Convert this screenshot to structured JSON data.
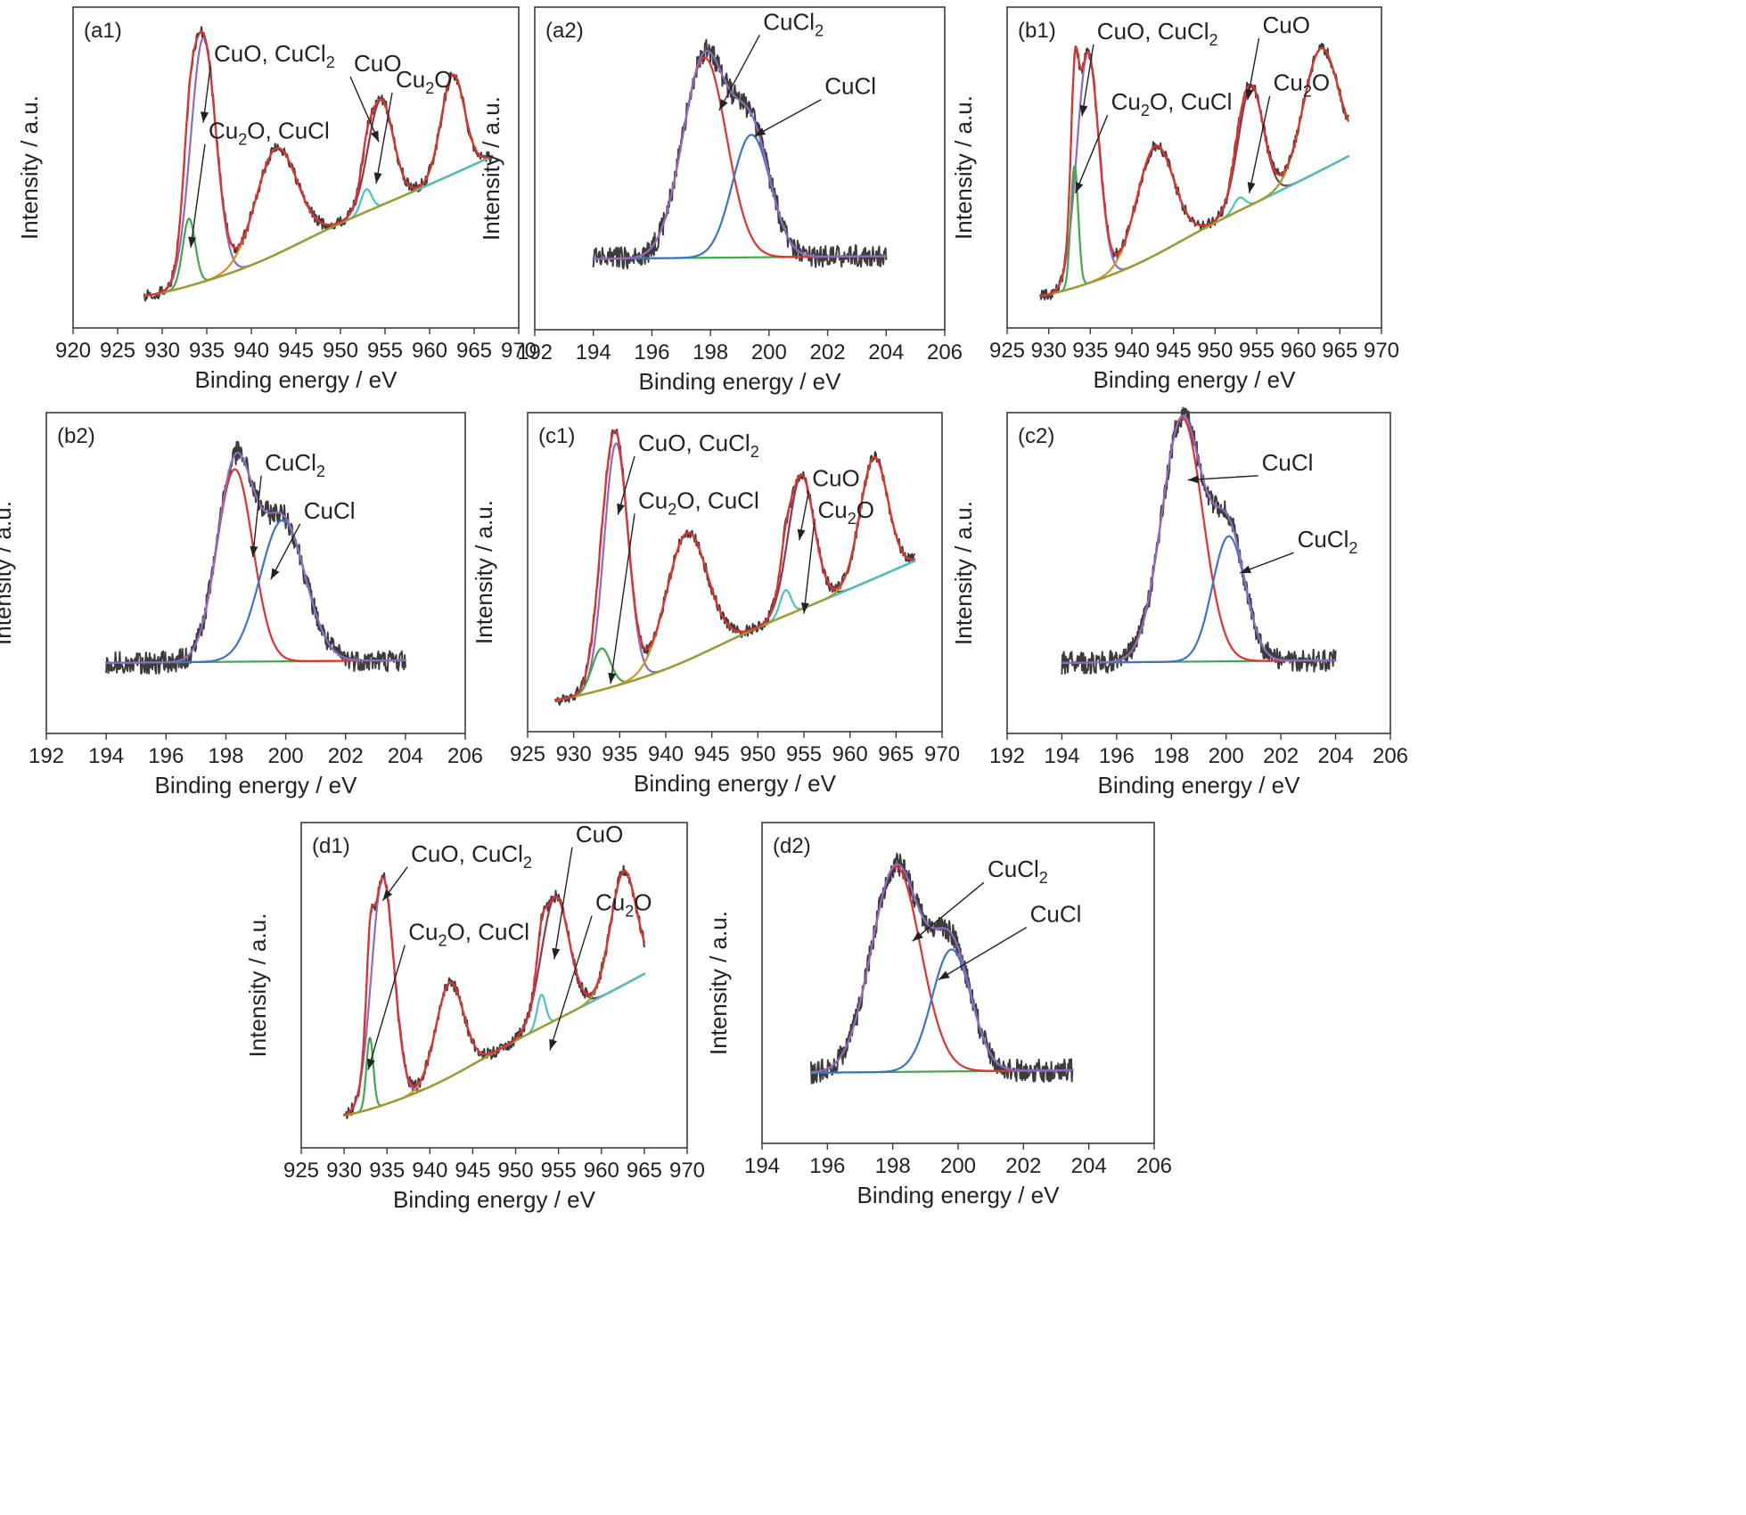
{
  "colors": {
    "raw": "#3c3c3c",
    "envelope_purple": "#8e6bbf",
    "red": "#e0312f",
    "green": "#3faa4a",
    "blue": "#3d74c4",
    "orange": "#d4912b",
    "cyan": "#49c2c2",
    "olive": "#a39a2a",
    "maroon": "#8a3a4a"
  },
  "chart_data": [
    {
      "id": "a1",
      "type": "line",
      "panel_label": "(a1)",
      "spectrum": "cu",
      "xlabel": "Binding energy / eV",
      "ylabel": "Intensity / a.u.",
      "xlim": [
        920,
        970
      ],
      "xrange": [
        928,
        967
      ],
      "xticks": [
        920,
        925,
        930,
        935,
        940,
        945,
        950,
        955,
        960,
        965,
        970
      ],
      "peaks": [
        {
          "name": "CuO, CuCl2",
          "color": "purple",
          "center": 934.6,
          "height": 0.76,
          "width": 1.4
        },
        {
          "name": "Cu2O, CuCl",
          "color": "green",
          "center": 933.0,
          "height": 0.21,
          "width": 0.7
        },
        {
          "name": "satellite",
          "color": "orange",
          "center": 942.8,
          "height": 0.33,
          "width": 2.3
        },
        {
          "name": "CuO",
          "color": "maroon",
          "center": 954.5,
          "height": 0.33,
          "width": 1.4
        },
        {
          "name": "Cu2O",
          "color": "cyan",
          "center": 952.9,
          "height": 0.07,
          "width": 0.6
        },
        {
          "name": "satellite",
          "color": "olive",
          "center": 962.6,
          "height": 0.31,
          "width": 1.3
        }
      ],
      "annotations": [
        {
          "main": "CuO, CuCl",
          "sub": "2",
          "text_x": 935.8,
          "text_y": 0.83,
          "tip_x": 934.6,
          "tip_y": 0.64
        },
        {
          "main": "Cu",
          "sub": "2",
          "rest": "O, CuCl",
          "text_x": 935.2,
          "text_y": 0.59,
          "tip_x": 933.2,
          "tip_y": 0.25
        },
        {
          "main": "CuO",
          "text_x": 951.5,
          "text_y": 0.8,
          "tip_x": 954.3,
          "tip_y": 0.58
        },
        {
          "main": "Cu",
          "sub": "2",
          "rest": "O",
          "text_x": 956.2,
          "text_y": 0.75,
          "tip_x": 954.0,
          "tip_y": 0.45
        }
      ]
    },
    {
      "id": "a2",
      "type": "line",
      "panel_label": "(a2)",
      "spectrum": "cl",
      "xlabel": "Binding energy / eV",
      "ylabel": "Intensity / a.u.",
      "xlim": [
        192,
        206
      ],
      "xrange": [
        194,
        204
      ],
      "xticks": [
        192,
        194,
        196,
        198,
        200,
        202,
        204,
        206
      ],
      "peaks": [
        {
          "name": "CuCl2",
          "color": "red",
          "center": 197.8,
          "height": 0.62,
          "width": 0.75
        },
        {
          "name": "CuCl",
          "color": "blue",
          "center": 199.4,
          "height": 0.38,
          "width": 0.65
        }
      ],
      "annotations": [
        {
          "main": "CuCl",
          "sub": "2",
          "text_x": 199.8,
          "text_y": 0.93,
          "tip_x": 198.3,
          "tip_y": 0.68
        },
        {
          "main": "CuCl",
          "text_x": 201.9,
          "text_y": 0.73,
          "tip_x": 199.5,
          "tip_y": 0.6
        }
      ]
    },
    {
      "id": "b1",
      "type": "line",
      "panel_label": "(b1)",
      "spectrum": "cu",
      "xlabel": "Binding energy / eV",
      "ylabel": "Intensity / a.u.",
      "xlim": [
        925,
        970
      ],
      "xrange": [
        929,
        966
      ],
      "xticks": [
        925,
        930,
        935,
        940,
        945,
        950,
        955,
        960,
        965,
        970
      ],
      "peaks": [
        {
          "name": "CuO, CuCl2",
          "color": "purple",
          "center": 934.7,
          "height": 0.72,
          "width": 1.3
        },
        {
          "name": "Cu2O, CuCl",
          "color": "green",
          "center": 933.1,
          "height": 0.38,
          "width": 0.45
        },
        {
          "name": "satellite",
          "color": "orange",
          "center": 942.8,
          "height": 0.34,
          "width": 2.2
        },
        {
          "name": "CuO",
          "color": "maroon",
          "center": 954.3,
          "height": 0.37,
          "width": 1.5
        },
        {
          "name": "Cu2O",
          "color": "cyan",
          "center": 952.9,
          "height": 0.04,
          "width": 0.7
        },
        {
          "name": "satellite",
          "color": "olive",
          "center": 962.7,
          "height": 0.38,
          "width": 2.1
        }
      ],
      "annotations": [
        {
          "main": "CuO, CuCl",
          "sub": "2",
          "text_x": 935.8,
          "text_y": 0.9,
          "tip_x": 934.0,
          "tip_y": 0.66
        },
        {
          "main": "Cu",
          "sub": "2",
          "rest": "O, CuCl",
          "text_x": 937.5,
          "text_y": 0.68,
          "tip_x": 933.2,
          "tip_y": 0.42
        },
        {
          "main": "CuO",
          "text_x": 955.7,
          "text_y": 0.92,
          "tip_x": 953.9,
          "tip_y": 0.71
        },
        {
          "main": "Cu",
          "sub": "2",
          "rest": "O",
          "text_x": 957.0,
          "text_y": 0.74,
          "tip_x": 954.1,
          "tip_y": 0.42
        }
      ]
    },
    {
      "id": "b2",
      "type": "line",
      "panel_label": "(b2)",
      "spectrum": "cl",
      "xlabel": "Binding energy / eV",
      "ylabel": "Intensity / a.u.",
      "xlim": [
        192,
        206
      ],
      "xrange": [
        194,
        204
      ],
      "xticks": [
        192,
        194,
        196,
        198,
        200,
        202,
        204,
        206
      ],
      "peaks": [
        {
          "name": "CuCl2",
          "color": "red",
          "center": 198.3,
          "height": 0.6,
          "width": 0.6
        },
        {
          "name": "CuCl",
          "color": "blue",
          "center": 199.9,
          "height": 0.44,
          "width": 0.75
        }
      ],
      "annotations": [
        {
          "main": "CuCl",
          "sub": "2",
          "text_x": 199.3,
          "text_y": 0.82,
          "tip_x": 198.9,
          "tip_y": 0.55
        },
        {
          "main": "CuCl",
          "text_x": 200.6,
          "text_y": 0.67,
          "tip_x": 199.5,
          "tip_y": 0.48
        }
      ]
    },
    {
      "id": "c1",
      "type": "line",
      "panel_label": "(c1)",
      "spectrum": "cu",
      "xlabel": "Binding energy / eV",
      "ylabel": "Intensity / a.u.",
      "xlim": [
        925,
        970
      ],
      "xrange": [
        928,
        967
      ],
      "xticks": [
        925,
        930,
        935,
        940,
        945,
        950,
        955,
        960,
        965,
        970
      ],
      "peaks": [
        {
          "name": "CuO, CuCl2",
          "color": "purple",
          "center": 934.6,
          "height": 0.76,
          "width": 1.3
        },
        {
          "name": "Cu2O, CuCl",
          "color": "green",
          "center": 933.0,
          "height": 0.13,
          "width": 1.0
        },
        {
          "name": "satellite",
          "color": "orange",
          "center": 942.3,
          "height": 0.4,
          "width": 2.2
        },
        {
          "name": "CuO",
          "color": "maroon",
          "center": 954.7,
          "height": 0.42,
          "width": 1.4
        },
        {
          "name": "Cu2O",
          "color": "cyan",
          "center": 953.0,
          "height": 0.08,
          "width": 0.6
        },
        {
          "name": "satellite",
          "color": "olive",
          "center": 962.6,
          "height": 0.38,
          "width": 1.5
        }
      ],
      "annotations": [
        {
          "main": "CuO, CuCl",
          "sub": "2",
          "text_x": 937.0,
          "text_y": 0.88,
          "tip_x": 934.8,
          "tip_y": 0.68
        },
        {
          "main": "Cu",
          "sub": "2",
          "rest": "O, CuCl",
          "text_x": 937.0,
          "text_y": 0.7,
          "tip_x": 934.0,
          "tip_y": 0.15
        },
        {
          "main": "CuO",
          "text_x": 955.9,
          "text_y": 0.77,
          "tip_x": 954.5,
          "tip_y": 0.6
        },
        {
          "main": "Cu",
          "sub": "2",
          "rest": "O",
          "text_x": 956.5,
          "text_y": 0.67,
          "tip_x": 955.0,
          "tip_y": 0.37
        }
      ]
    },
    {
      "id": "c2",
      "type": "line",
      "panel_label": "(c2)",
      "spectrum": "cl",
      "xlabel": "Binding energy / eV",
      "ylabel": "Intensity / a.u.",
      "xlim": [
        192,
        206
      ],
      "xrange": [
        194,
        204
      ],
      "xticks": [
        192,
        194,
        196,
        198,
        200,
        202,
        204,
        206
      ],
      "peaks": [
        {
          "name": "CuCl",
          "color": "red",
          "center": 198.4,
          "height": 0.76,
          "width": 0.75
        },
        {
          "name": "CuCl2",
          "color": "blue",
          "center": 200.1,
          "height": 0.39,
          "width": 0.6
        }
      ],
      "annotations": [
        {
          "main": "CuCl",
          "text_x": 201.3,
          "text_y": 0.82,
          "tip_x": 198.6,
          "tip_y": 0.79
        },
        {
          "main": "CuCl",
          "sub": "2",
          "text_x": 202.6,
          "text_y": 0.58,
          "tip_x": 200.5,
          "tip_y": 0.5
        }
      ]
    },
    {
      "id": "d1",
      "type": "line",
      "panel_label": "(d1)",
      "spectrum": "cu",
      "xlabel": "Binding energy / eV",
      "ylabel": "Intensity / a.u.",
      "xlim": [
        925,
        970
      ],
      "xrange": [
        930,
        965
      ],
      "xticks": [
        925,
        930,
        935,
        940,
        945,
        950,
        955,
        960,
        965,
        970
      ],
      "peaks": [
        {
          "name": "CuO, CuCl2",
          "color": "purple",
          "center": 934.5,
          "height": 0.7,
          "width": 1.3
        },
        {
          "name": "Cu2O, CuCl",
          "color": "green",
          "center": 933.0,
          "height": 0.22,
          "width": 0.4
        },
        {
          "name": "satellite",
          "color": "orange",
          "center": 942.3,
          "height": 0.29,
          "width": 1.6
        },
        {
          "name": "CuO",
          "color": "maroon",
          "center": 954.6,
          "height": 0.38,
          "width": 1.6
        },
        {
          "name": "Cu2O",
          "color": "cyan",
          "center": 953.0,
          "height": 0.1,
          "width": 0.5
        },
        {
          "name": "satellite",
          "color": "olive",
          "center": 962.6,
          "height": 0.35,
          "width": 1.5
        }
      ],
      "annotations": [
        {
          "main": "CuO, CuCl",
          "sub": "2",
          "text_x": 937.8,
          "text_y": 0.88,
          "tip_x": 934.5,
          "tip_y": 0.76
        },
        {
          "main": "Cu",
          "sub": "2",
          "rest": "O, CuCl",
          "text_x": 937.5,
          "text_y": 0.64,
          "tip_x": 932.8,
          "tip_y": 0.24
        },
        {
          "main": "CuO",
          "text_x": 957.0,
          "text_y": 0.94,
          "tip_x": 954.5,
          "tip_y": 0.58
        },
        {
          "main": "Cu",
          "sub": "2",
          "rest": "O",
          "text_x": 959.3,
          "text_y": 0.73,
          "tip_x": 954.0,
          "tip_y": 0.3
        }
      ]
    },
    {
      "id": "d2",
      "type": "line",
      "panel_label": "(d2)",
      "spectrum": "cl",
      "xlabel": "Binding energy / eV",
      "ylabel": "Intensity / a.u.",
      "xlim": [
        194,
        206
      ],
      "xrange": [
        195.5,
        203.5
      ],
      "xticks": [
        194,
        196,
        198,
        200,
        202,
        204,
        206
      ],
      "peaks": [
        {
          "name": "CuCl2",
          "color": "red",
          "center": 198.1,
          "height": 0.64,
          "width": 0.75
        },
        {
          "name": "CuCl",
          "color": "blue",
          "center": 199.8,
          "height": 0.38,
          "width": 0.6
        }
      ],
      "annotations": [
        {
          "main": "CuCl",
          "sub": "2",
          "text_x": 200.9,
          "text_y": 0.83,
          "tip_x": 198.6,
          "tip_y": 0.63
        },
        {
          "main": "CuCl",
          "text_x": 202.2,
          "text_y": 0.69,
          "tip_x": 199.4,
          "tip_y": 0.51
        }
      ]
    }
  ]
}
